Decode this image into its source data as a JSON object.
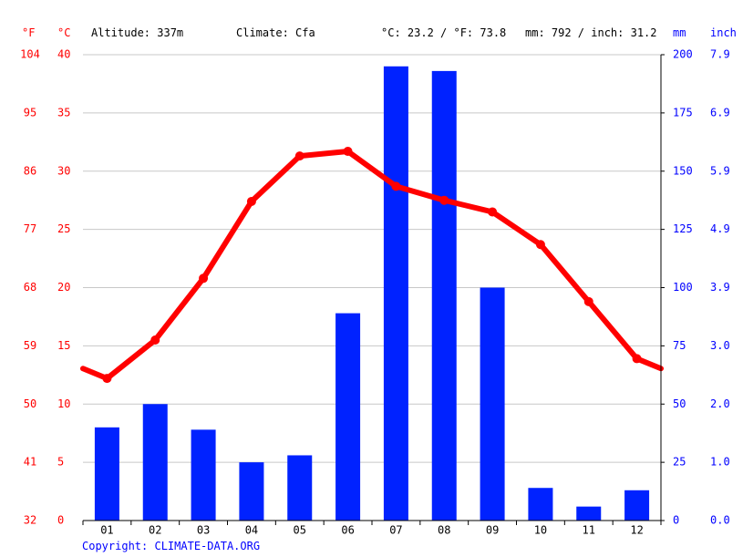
{
  "header": {
    "unit_f": "°F",
    "unit_c": "°C",
    "altitude": "Altitude: 337m",
    "climate": "Climate: Cfa",
    "temp_avg": "°C: 23.2 / °F: 73.8",
    "precip_total": "mm: 792 / inch: 31.2",
    "unit_mm": "mm",
    "unit_inch": "inch"
  },
  "copyright": "Copyright: CLIMATE-DATA.ORG",
  "colors": {
    "temperature": "#ff0000",
    "precipitation": "#0022ff",
    "grid": "#c8c8c8",
    "axis": "#000000"
  },
  "axes": {
    "celsius_ticks": [
      "0",
      "5",
      "10",
      "15",
      "20",
      "25",
      "30",
      "35",
      "40"
    ],
    "fahrenheit_ticks": [
      "32",
      "41",
      "50",
      "59",
      "68",
      "77",
      "86",
      "95",
      "104"
    ],
    "mm_ticks": [
      "0",
      "25",
      "50",
      "75",
      "100",
      "125",
      "150",
      "175",
      "200"
    ],
    "inch_ticks": [
      "0.0",
      "1.0",
      "2.0",
      "3.0",
      "3.9",
      "4.9",
      "5.9",
      "6.9",
      "7.9"
    ]
  },
  "chart_data": {
    "type": "bar",
    "categories": [
      "01",
      "02",
      "03",
      "04",
      "05",
      "06",
      "07",
      "08",
      "09",
      "10",
      "11",
      "12"
    ],
    "series": [
      {
        "type": "bar",
        "axis": "mm",
        "values": [
          40,
          50,
          39,
          25,
          28,
          89,
          195,
          193,
          100,
          14,
          6,
          13
        ]
      },
      {
        "type": "line",
        "axis": "celsius",
        "values": [
          12.2,
          15.5,
          20.8,
          27.4,
          31.3,
          31.7,
          28.7,
          27.5,
          26.5,
          23.7,
          18.8,
          13.9
        ]
      }
    ],
    "ylim_celsius": [
      0,
      40
    ],
    "ylim_fahrenheit": [
      32,
      104
    ],
    "ylim_mm": [
      0,
      200
    ],
    "ylim_inch": [
      0,
      7.9
    ],
    "grid": true
  }
}
